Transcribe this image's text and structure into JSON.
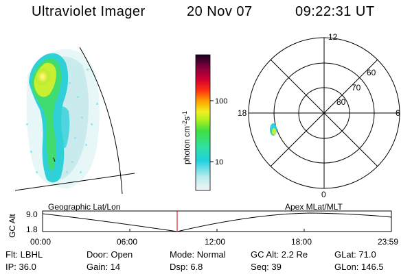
{
  "header": {
    "title": "Ultraviolet Imager",
    "date": "20 Nov 07",
    "time": "09:22:31 UT"
  },
  "colorbar": {
    "unit_main": "photon cm",
    "unit_exp1": "-2",
    "unit_mid": "s",
    "unit_exp2": "-1",
    "tick_high": "100",
    "tick_low": "10",
    "scale": "log"
  },
  "dial": {
    "mlt_top": "12",
    "mlt_left": "18",
    "mlt_right": "6",
    "mlt_bottom": "0",
    "lat_60": "60",
    "lat_70": "70",
    "lat_80": "80"
  },
  "captions": {
    "left": "Geographic Lat/Lon",
    "right": "Apex  MLat/MLT"
  },
  "timeline": {
    "ylabel": "GC Alt",
    "ymax": "9.0",
    "ymin": "1.8",
    "ticks": [
      "00:00",
      "06:00",
      "12:00",
      "18:00",
      "23:59"
    ],
    "current_time": "09:22:31"
  },
  "status": {
    "filter": "Flt: LBHL",
    "door": "Door: Open",
    "mode": "Mode: Normal",
    "gc_alt": "GC Alt: 2.2 Re",
    "glat": "GLat: 71.0",
    "ip": "IP: 36.0",
    "gain": "Gain: 14",
    "dsp": "Dsp:     6.8",
    "seq": "Seq: 39",
    "glon": "GLon: 146.5"
  },
  "colors": {
    "marker": "#c00000",
    "aurora_low": "#30d0d8",
    "aurora_mid": "#40dc70",
    "aurora_high": "#c8f030"
  }
}
